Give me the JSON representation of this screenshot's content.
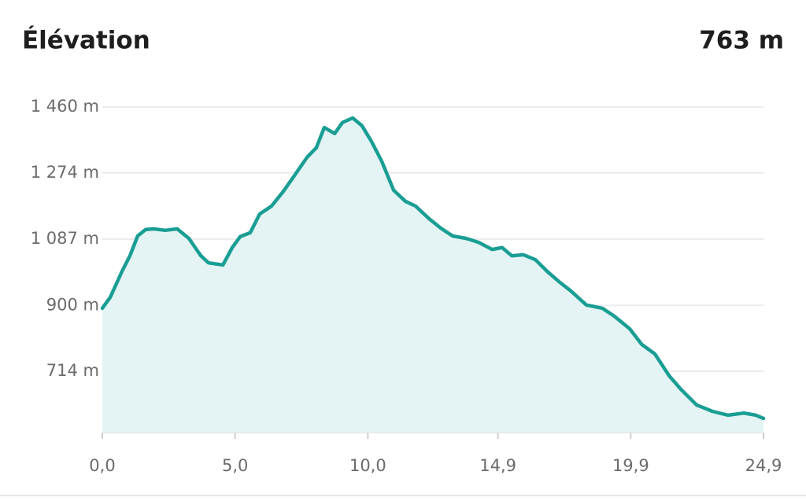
{
  "chart_data": {
    "type": "area",
    "title": "Élévation",
    "summary": "763 m",
    "color": "#1a9e94",
    "fill": "#e4f4f4",
    "grid": true,
    "x": [
      0.0,
      0.3,
      0.74,
      1.04,
      1.33,
      1.63,
      1.93,
      2.37,
      2.82,
      3.26,
      3.71,
      4.0,
      4.54,
      4.89,
      5.19,
      5.57,
      5.93,
      6.37,
      6.82,
      7.26,
      7.71,
      8.06,
      8.36,
      8.75,
      9.04,
      9.43,
      9.78,
      10.14,
      10.52,
      10.97,
      11.41,
      11.8,
      12.3,
      12.75,
      13.19,
      13.7,
      14.17,
      14.68,
      15.06,
      15.42,
      15.86,
      16.31,
      16.75,
      17.2,
      17.64,
      18.23,
      18.83,
      19.27,
      19.86,
      20.31,
      20.81,
      21.35,
      21.79,
      22.38,
      22.98,
      23.57,
      24.16,
      24.61,
      24.9
    ],
    "values": [
      892,
      923,
      996,
      1040,
      1096,
      1114,
      1116,
      1112,
      1116,
      1089,
      1040,
      1020,
      1014,
      1063,
      1094,
      1105,
      1158,
      1180,
      1222,
      1269,
      1318,
      1345,
      1402,
      1385,
      1416,
      1429,
      1407,
      1362,
      1307,
      1225,
      1194,
      1180,
      1145,
      1118,
      1096,
      1089,
      1078,
      1058,
      1063,
      1040,
      1043,
      1029,
      996,
      967,
      941,
      901,
      892,
      870,
      834,
      790,
      763,
      701,
      663,
      619,
      601,
      590,
      596,
      590,
      581
    ],
    "xlim": [
      0,
      24.9
    ],
    "xticks": [
      {
        "value": 0,
        "label": "0,0"
      },
      {
        "value": 5.0,
        "label": "5,0"
      },
      {
        "value": 10.0,
        "label": "10,0"
      },
      {
        "value": 14.9,
        "label": "14,9"
      },
      {
        "value": 19.9,
        "label": "19,9"
      },
      {
        "value": 24.9,
        "label": "24,9"
      }
    ],
    "ylim": [
      541,
      1460
    ],
    "yticks": [
      {
        "value": 1460,
        "label": "1 460 m"
      },
      {
        "value": 1274,
        "label": "1 274 m"
      },
      {
        "value": 1087,
        "label": "1 087 m"
      },
      {
        "value": 900,
        "label": "900 m"
      },
      {
        "value": 714,
        "label": "714 m"
      }
    ]
  }
}
